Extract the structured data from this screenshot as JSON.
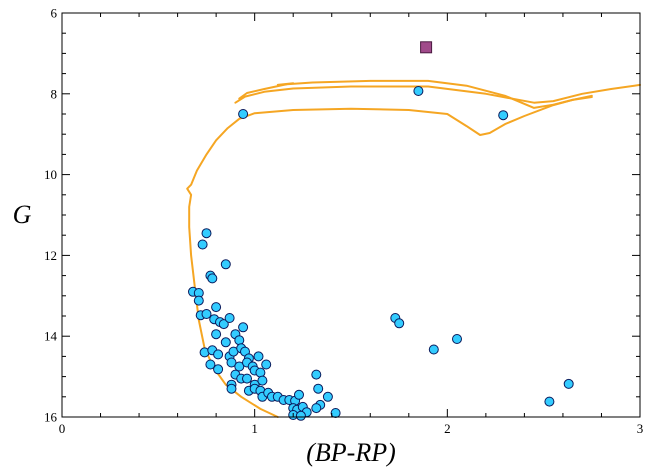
{
  "chart_data": {
    "type": "scatter",
    "xlabel": "(BP-RP)",
    "ylabel": "G",
    "xlim": [
      0,
      3
    ],
    "ylim": [
      16,
      6
    ],
    "y_inverted": true,
    "grid": false,
    "x_ticks": [
      0,
      1,
      2,
      3
    ],
    "y_ticks": [
      6,
      8,
      10,
      12,
      14,
      16
    ],
    "x_tick_labels": [
      "0",
      "1",
      "2",
      "3"
    ],
    "y_tick_labels": [
      "6",
      "8",
      "10",
      "12",
      "14",
      "16"
    ],
    "colors": {
      "point_fill": "#33ccff",
      "point_edge": "#0a1a5c",
      "isochrone": "#f5a623",
      "special_marker": "#a04a8a"
    },
    "series": [
      {
        "marker": "circle",
        "points": [
          [
            0.73,
            11.73
          ],
          [
            0.75,
            11.45
          ],
          [
            0.77,
            12.5
          ],
          [
            0.78,
            12.57
          ],
          [
            0.85,
            12.22
          ],
          [
            0.68,
            12.9
          ],
          [
            0.71,
            12.93
          ],
          [
            0.71,
            13.12
          ],
          [
            0.72,
            13.48
          ],
          [
            0.75,
            13.45
          ],
          [
            0.8,
            13.28
          ],
          [
            0.79,
            13.58
          ],
          [
            0.82,
            13.65
          ],
          [
            0.84,
            13.7
          ],
          [
            0.87,
            13.55
          ],
          [
            0.94,
            13.78
          ],
          [
            0.8,
            13.95
          ],
          [
            0.9,
            13.95
          ],
          [
            0.92,
            14.1
          ],
          [
            0.85,
            14.15
          ],
          [
            0.74,
            14.4
          ],
          [
            0.78,
            14.35
          ],
          [
            0.81,
            14.45
          ],
          [
            0.87,
            14.5
          ],
          [
            0.89,
            14.38
          ],
          [
            0.93,
            14.3
          ],
          [
            0.95,
            14.38
          ],
          [
            0.97,
            14.55
          ],
          [
            1.02,
            14.5
          ],
          [
            0.77,
            14.7
          ],
          [
            0.81,
            14.82
          ],
          [
            0.88,
            14.65
          ],
          [
            0.92,
            14.75
          ],
          [
            0.96,
            14.65
          ],
          [
            0.99,
            14.75
          ],
          [
            1.0,
            14.85
          ],
          [
            1.03,
            14.9
          ],
          [
            1.06,
            14.7
          ],
          [
            0.9,
            14.95
          ],
          [
            0.93,
            15.05
          ],
          [
            0.96,
            15.05
          ],
          [
            1.0,
            15.2
          ],
          [
            1.04,
            15.1
          ],
          [
            0.88,
            15.2
          ],
          [
            0.88,
            15.3
          ],
          [
            0.97,
            15.35
          ],
          [
            1.0,
            15.3
          ],
          [
            1.03,
            15.35
          ],
          [
            1.04,
            15.5
          ],
          [
            1.07,
            15.4
          ],
          [
            1.09,
            15.5
          ],
          [
            1.12,
            15.5
          ],
          [
            1.15,
            15.58
          ],
          [
            1.18,
            15.58
          ],
          [
            1.21,
            15.6
          ],
          [
            1.23,
            15.45
          ],
          [
            1.2,
            15.78
          ],
          [
            1.22,
            15.82
          ],
          [
            1.25,
            15.75
          ],
          [
            1.27,
            15.88
          ],
          [
            1.2,
            15.95
          ],
          [
            1.24,
            15.97
          ],
          [
            1.32,
            14.95
          ],
          [
            1.33,
            15.3
          ],
          [
            1.34,
            15.7
          ],
          [
            1.32,
            15.78
          ],
          [
            1.38,
            15.5
          ],
          [
            1.42,
            15.9
          ],
          [
            1.73,
            13.55
          ],
          [
            1.75,
            13.68
          ],
          [
            1.93,
            14.33
          ],
          [
            2.05,
            14.07
          ],
          [
            2.53,
            15.62
          ],
          [
            2.63,
            15.18
          ],
          [
            1.85,
            7.93
          ],
          [
            2.29,
            8.53
          ],
          [
            0.94,
            8.5
          ]
        ]
      },
      {
        "marker": "square",
        "points": [
          [
            1.89,
            6.85
          ]
        ]
      }
    ],
    "isochrone_curves": [
      [
        [
          1.12,
          16.0
        ],
        [
          1.03,
          15.8
        ],
        [
          0.93,
          15.5
        ],
        [
          0.85,
          15.2
        ],
        [
          0.79,
          14.8
        ],
        [
          0.74,
          14.3
        ],
        [
          0.71,
          13.6
        ],
        [
          0.69,
          12.8
        ],
        [
          0.67,
          12.0
        ],
        [
          0.66,
          11.3
        ],
        [
          0.66,
          10.8
        ],
        [
          0.67,
          10.5
        ],
        [
          0.65,
          10.35
        ],
        [
          0.67,
          10.25
        ],
        [
          0.7,
          9.9
        ],
        [
          0.75,
          9.5
        ],
        [
          0.8,
          9.15
        ],
        [
          0.86,
          8.85
        ],
        [
          0.92,
          8.62
        ],
        [
          1.0,
          8.48
        ],
        [
          1.2,
          8.4
        ],
        [
          1.5,
          8.37
        ],
        [
          1.8,
          8.4
        ],
        [
          2.0,
          8.5
        ],
        [
          2.1,
          8.8
        ],
        [
          2.17,
          9.02
        ],
        [
          2.22,
          8.97
        ],
        [
          2.3,
          8.75
        ],
        [
          2.4,
          8.55
        ],
        [
          2.55,
          8.28
        ],
        [
          2.65,
          8.15
        ],
        [
          2.75,
          8.08
        ]
      ],
      [
        [
          0.92,
          8.12
        ],
        [
          0.96,
          7.98
        ],
        [
          1.05,
          7.88
        ],
        [
          1.15,
          7.78
        ],
        [
          1.2,
          7.74
        ],
        [
          1.12,
          7.78
        ],
        [
          1.3,
          7.72
        ],
        [
          1.6,
          7.68
        ],
        [
          1.9,
          7.68
        ],
        [
          2.1,
          7.8
        ],
        [
          2.3,
          8.05
        ],
        [
          2.45,
          8.35
        ],
        [
          2.55,
          8.27
        ],
        [
          2.65,
          8.15
        ],
        [
          2.75,
          8.05
        ]
      ],
      [
        [
          0.9,
          8.22
        ],
        [
          0.95,
          8.07
        ],
        [
          1.05,
          7.95
        ],
        [
          1.2,
          7.87
        ],
        [
          1.5,
          7.82
        ],
        [
          1.9,
          7.82
        ],
        [
          2.2,
          8.0
        ],
        [
          2.45,
          8.22
        ],
        [
          2.55,
          8.18
        ],
        [
          2.7,
          8.0
        ],
        [
          2.85,
          7.88
        ],
        [
          3.0,
          7.78
        ]
      ]
    ]
  }
}
